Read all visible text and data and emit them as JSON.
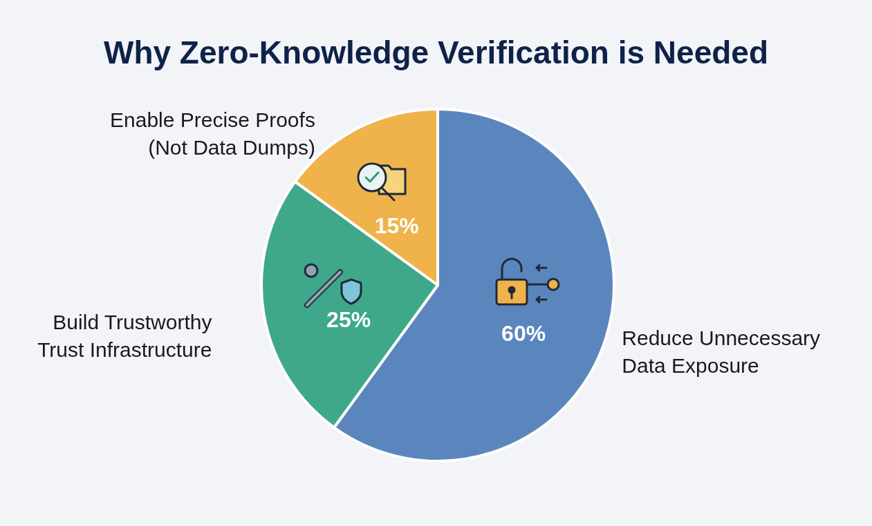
{
  "chart_data": {
    "type": "pie",
    "title": "Why Zero-Knowledge Verification is Needed",
    "categories": [
      "Reduce Unnecessary\nData Exposure",
      "Build Trustworthy\nTrust Infrastructure",
      "Enable Precise Proofs\n(Not Data Dumps)"
    ],
    "values": [
      60,
      25,
      15
    ],
    "colors": [
      "#5b86bd",
      "#3fa88a",
      "#f0b24a"
    ],
    "value_labels": [
      "60%",
      "25%",
      "15%"
    ],
    "legend": false
  }
}
